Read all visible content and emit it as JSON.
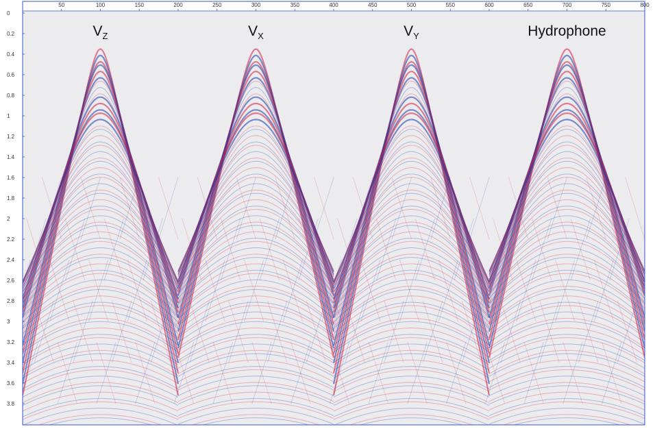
{
  "chart_data": {
    "type": "seismic",
    "xlim": [
      0,
      800
    ],
    "xticks": [
      50,
      100,
      150,
      200,
      250,
      300,
      350,
      400,
      450,
      500,
      550,
      600,
      650,
      700,
      750,
      800
    ],
    "ylim": [
      0,
      4
    ],
    "yticks": [
      0,
      0.2,
      0.4,
      0.6,
      0.8,
      1,
      1.2,
      1.4,
      1.6,
      1.8,
      2,
      2.2,
      2.4,
      2.6,
      2.8,
      3,
      3.2,
      3.4,
      3.6,
      3.8
    ],
    "annotations": [
      {
        "text": "V",
        "subscript": "Z",
        "x": 100
      },
      {
        "text": "V",
        "subscript": "X",
        "x": 300
      },
      {
        "text": "V",
        "subscript": "Y",
        "x": 500
      },
      {
        "text": "Hydrophone",
        "x": 700
      }
    ]
  }
}
